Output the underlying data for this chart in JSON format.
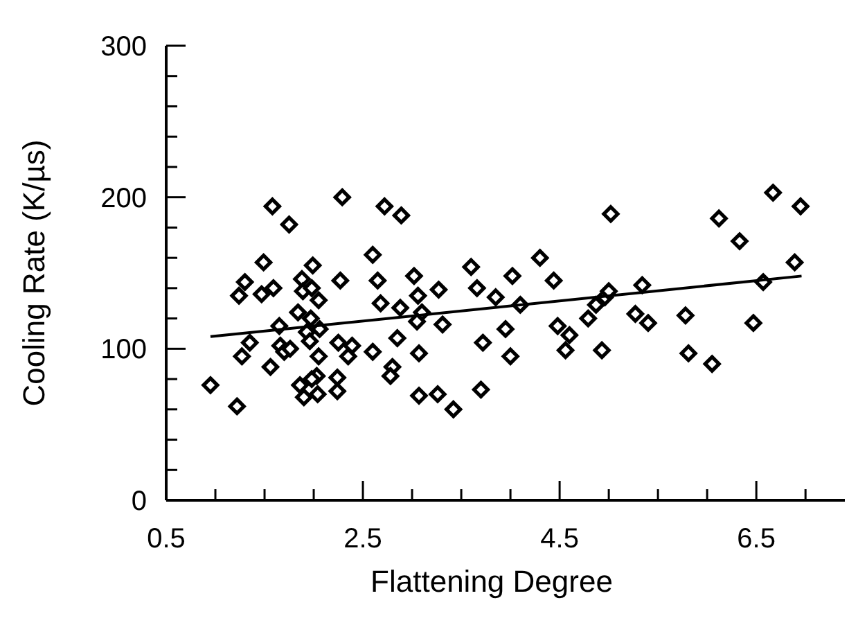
{
  "chart_data": {
    "type": "scatter",
    "xlabel": "Flattening Degree",
    "ylabel": "Cooling Rate (K/µs)",
    "xlim": [
      0.5,
      7.4
    ],
    "ylim": [
      0,
      300
    ],
    "xticks": [
      0.5,
      {
        "value": 1,
        "label": null
      },
      {
        "value": 1.5,
        "label": null
      },
      {
        "value": 2,
        "label": null
      },
      2.5,
      {
        "value": 3,
        "label": null
      },
      {
        "value": 3.5,
        "label": null
      },
      {
        "value": 4,
        "label": null
      },
      4.5,
      {
        "value": 5,
        "label": null
      },
      {
        "value": 5.5,
        "label": null
      },
      {
        "value": 6,
        "label": null
      },
      6.5,
      {
        "value": 7,
        "label": null
      }
    ],
    "yticks": [
      0,
      {
        "value": 20,
        "label": null
      },
      {
        "value": 40,
        "label": null
      },
      {
        "value": 60,
        "label": null
      },
      {
        "value": 80,
        "label": null
      },
      100,
      {
        "value": 120,
        "label": null
      },
      {
        "value": 140,
        "label": null
      },
      {
        "value": 160,
        "label": null
      },
      {
        "value": 180,
        "label": null
      },
      200,
      {
        "value": 220,
        "label": null
      },
      {
        "value": 240,
        "label": null
      },
      {
        "value": 260,
        "label": null
      },
      {
        "value": 280,
        "label": null
      },
      300
    ],
    "series": [
      {
        "color": "#000000",
        "marker": "diamond",
        "x": [
          0.95,
          1.22,
          1.24,
          1.3,
          1.27,
          1.35,
          1.49,
          1.47,
          1.58,
          1.59,
          1.56,
          1.65,
          1.66,
          1.7,
          1.76,
          1.75,
          1.84,
          1.88,
          1.89,
          1.99,
          1.98,
          1.97,
          1.93,
          1.96,
          2.05,
          2.06,
          2.05,
          1.86,
          1.9,
          2.03,
          1.98,
          2.04,
          2.24,
          2.24,
          2.29,
          2.27,
          2.25,
          2.39,
          2.35,
          2.6,
          2.6,
          2.65,
          2.68,
          2.72,
          2.88,
          2.89,
          2.85,
          2.8,
          2.78,
          3.02,
          3.06,
          3.1,
          3.05,
          3.07,
          3.07,
          3.26,
          3.27,
          3.31,
          3.42,
          3.6,
          3.66,
          3.72,
          3.7,
          3.85,
          4.02,
          3.95,
          4.0,
          4.1,
          4.3,
          4.44,
          4.48,
          4.6,
          4.56,
          4.79,
          4.87,
          4.93,
          4.96,
          5.0,
          5.02,
          5.27,
          5.34,
          5.4,
          5.78,
          5.81,
          6.05,
          6.12,
          6.33,
          6.47,
          6.57,
          6.67,
          6.89,
          6.95
        ],
        "values": [
          76,
          62,
          135,
          144,
          95,
          104,
          157,
          136,
          194,
          140,
          88,
          115,
          102,
          98,
          100,
          182,
          124,
          146,
          138,
          155,
          140,
          120,
          111,
          105,
          132,
          113,
          95,
          76,
          68,
          82,
          80,
          70,
          81,
          72,
          200,
          145,
          104,
          102,
          95,
          162,
          98,
          145,
          130,
          194,
          127,
          188,
          107,
          88,
          82,
          148,
          135,
          124,
          118,
          97,
          69,
          70,
          139,
          116,
          60,
          154,
          140,
          104,
          73,
          134,
          148,
          113,
          95,
          129,
          160,
          145,
          115,
          109,
          99,
          120,
          129,
          99,
          134,
          138,
          189,
          123,
          142,
          117,
          122,
          97,
          90,
          186,
          171,
          117,
          144,
          203,
          157,
          194
        ]
      },
      {
        "type": "line",
        "color": "#000000",
        "marker": "none",
        "line_style": "solid",
        "x": [
          0.95,
          6.96
        ],
        "values": [
          108,
          148
        ]
      }
    ]
  }
}
